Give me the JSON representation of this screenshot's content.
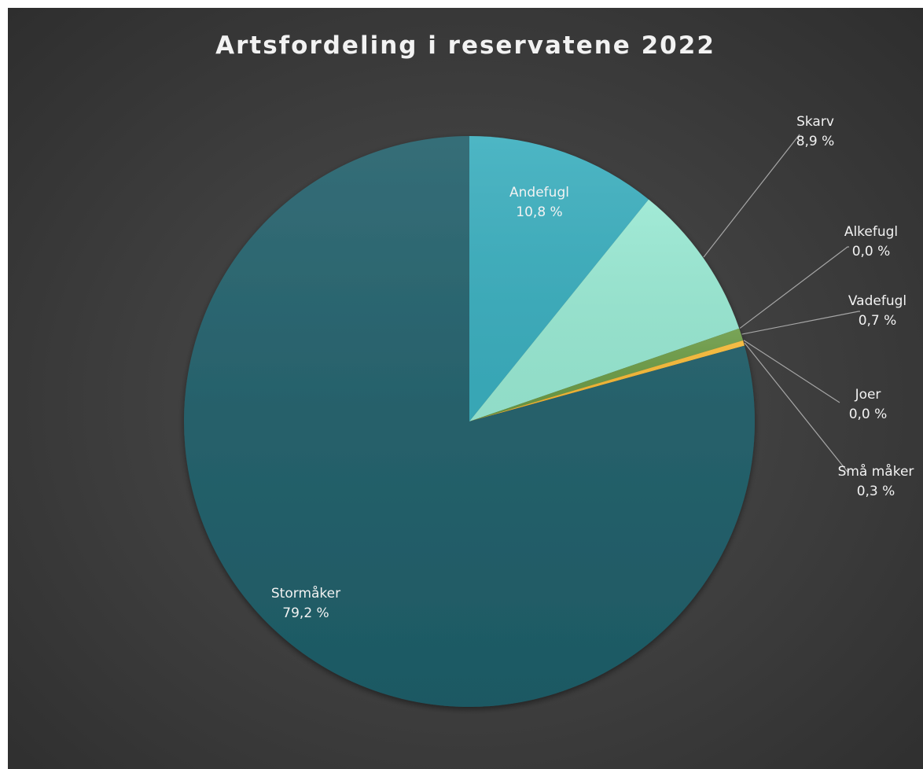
{
  "chart_data": {
    "type": "pie",
    "title": "Artsfordeling i reservatene 2022",
    "slices": [
      {
        "name": "Andefugl",
        "value": 10.8,
        "label": "10,8 %",
        "color": "#3aaebe"
      },
      {
        "name": "Skarv",
        "value": 8.9,
        "label": "8,9 %",
        "color": "#98e8d2"
      },
      {
        "name": "Alkefugl",
        "value": 0.0,
        "label": "0,0 %",
        "color": "#3f6f3a"
      },
      {
        "name": "Vadefugl",
        "value": 0.7,
        "label": "0,7 %",
        "color": "#6a9a44"
      },
      {
        "name": "Joer",
        "value": 0.0,
        "label": "0,0 %",
        "color": "#c97a1a"
      },
      {
        "name": "Små måker",
        "value": 0.3,
        "label": "0,3 %",
        "color": "#f4b632"
      },
      {
        "name": "Stormåker",
        "value": 79.2,
        "label": "79,2 %",
        "color": "#1f5e69"
      }
    ],
    "legend": "none",
    "data_labels": "category name and percentage"
  },
  "colors": {
    "background": "#3e3e3e",
    "title_text": "#f2f2f2",
    "label_text": "#f2f2f2",
    "leader_line": "#a6a6a6"
  }
}
